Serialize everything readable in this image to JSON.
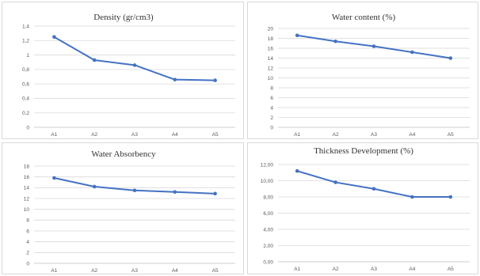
{
  "colors": {
    "series": "#4472c4"
  },
  "chart_data": [
    {
      "type": "line",
      "title": "Density (gr/cm3)",
      "categories": [
        "A1",
        "A2",
        "A3",
        "A4",
        "A5"
      ],
      "values": [
        1.25,
        0.93,
        0.86,
        0.66,
        0.65
      ],
      "ylim": [
        0,
        1.4
      ],
      "yticks": [
        0,
        0.2,
        0.4,
        0.6,
        0.8,
        1,
        1.2,
        1.4
      ],
      "ytick_labels": [
        "0",
        "0,2",
        "0,4",
        "0,6",
        "0,8",
        "1",
        "1,2",
        "1,4"
      ],
      "grid": true,
      "legend": "none"
    },
    {
      "type": "line",
      "title": "Water content (%)",
      "categories": [
        "A1",
        "A2",
        "A3",
        "A4",
        "A5"
      ],
      "values": [
        18.6,
        17.4,
        16.4,
        15.2,
        14.0
      ],
      "ylim": [
        0,
        20
      ],
      "yticks": [
        0,
        2,
        4,
        6,
        8,
        10,
        12,
        14,
        16,
        18,
        20
      ],
      "ytick_labels": [
        "0",
        "2",
        "4",
        "6",
        "8",
        "10",
        "12",
        "14",
        "16",
        "18",
        "20"
      ],
      "grid": true,
      "legend": "none"
    },
    {
      "type": "line",
      "title": "Water Absorbency",
      "categories": [
        "A1",
        "A2",
        "A3",
        "A4",
        "A5"
      ],
      "values": [
        15.8,
        14.2,
        13.5,
        13.2,
        12.9
      ],
      "ylim": [
        0,
        18
      ],
      "yticks": [
        0,
        2,
        4,
        6,
        8,
        10,
        12,
        14,
        16,
        18
      ],
      "ytick_labels": [
        "0",
        "2",
        "4",
        "6",
        "8",
        "10",
        "12",
        "14",
        "16",
        "18"
      ],
      "grid": true,
      "legend": "none"
    },
    {
      "type": "line",
      "title": "Thickness Development (%)",
      "categories": [
        "A1",
        "A2",
        "A3",
        "A4",
        "A5"
      ],
      "values": [
        11.2,
        9.8,
        9.0,
        8.0,
        8.0
      ],
      "ylim": [
        0,
        12
      ],
      "yticks": [
        0,
        2,
        4,
        6,
        8,
        10,
        12
      ],
      "ytick_labels": [
        "0,00",
        "2,00",
        "4,00",
        "6,00",
        "8,00",
        "10,00",
        "12,00"
      ],
      "grid": true,
      "legend": "none"
    }
  ]
}
